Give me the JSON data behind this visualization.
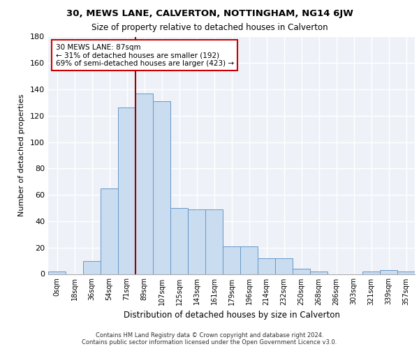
{
  "title1": "30, MEWS LANE, CALVERTON, NOTTINGHAM, NG14 6JW",
  "title2": "Size of property relative to detached houses in Calverton",
  "xlabel": "Distribution of detached houses by size in Calverton",
  "ylabel": "Number of detached properties",
  "footnote1": "Contains HM Land Registry data © Crown copyright and database right 2024.",
  "footnote2": "Contains public sector information licensed under the Open Government Licence v3.0.",
  "bar_labels": [
    "0sqm",
    "18sqm",
    "36sqm",
    "54sqm",
    "71sqm",
    "89sqm",
    "107sqm",
    "125sqm",
    "143sqm",
    "161sqm",
    "179sqm",
    "196sqm",
    "214sqm",
    "232sqm",
    "250sqm",
    "268sqm",
    "286sqm",
    "303sqm",
    "321sqm",
    "339sqm",
    "357sqm"
  ],
  "bar_values": [
    2,
    0,
    10,
    65,
    126,
    137,
    131,
    50,
    49,
    49,
    21,
    21,
    12,
    12,
    4,
    2,
    0,
    0,
    2,
    3,
    2
  ],
  "bar_color": "#c9dcf0",
  "bar_edge_color": "#6698c8",
  "property_label": "30 MEWS LANE: 87sqm",
  "annotation_line1": "← 31% of detached houses are smaller (192)",
  "annotation_line2": "69% of semi-detached houses are larger (423) →",
  "vline_color": "#990000",
  "vline_x": 4.5,
  "annotation_box_color": "#ffffff",
  "annotation_box_edge": "#cc0000",
  "ylim": [
    0,
    180
  ],
  "yticks": [
    0,
    20,
    40,
    60,
    80,
    100,
    120,
    140,
    160,
    180
  ],
  "background_color": "#eef2f8",
  "grid_color": "#ffffff"
}
